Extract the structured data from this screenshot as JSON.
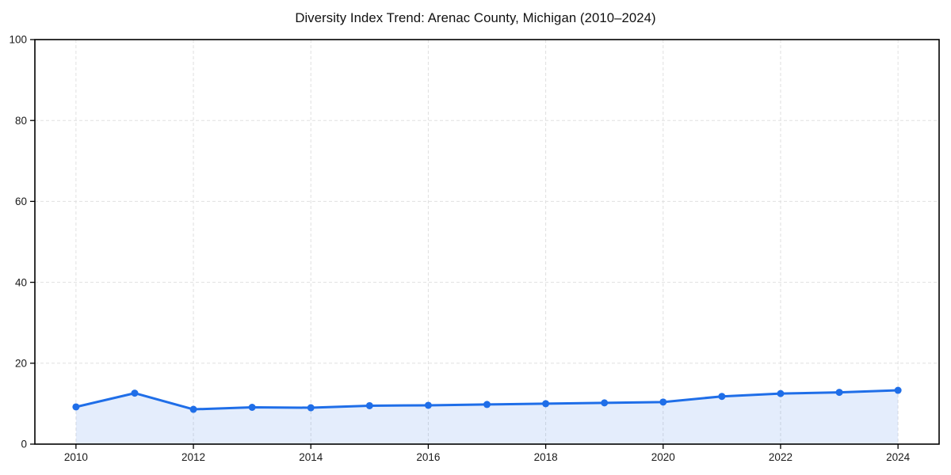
{
  "chart_data": {
    "type": "area",
    "title": "Diversity Index Trend: Arenac County, Michigan (2010–2024)",
    "x": [
      2010,
      2011,
      2012,
      2013,
      2014,
      2015,
      2016,
      2017,
      2018,
      2019,
      2020,
      2021,
      2022,
      2023,
      2024
    ],
    "series": [
      {
        "name": "Diversity Index",
        "values": [
          9.2,
          12.6,
          8.6,
          9.1,
          9.0,
          9.5,
          9.6,
          9.8,
          10.0,
          10.2,
          10.4,
          11.8,
          12.5,
          12.8,
          13.3
        ]
      }
    ],
    "xlabel": "",
    "ylabel": "",
    "xlim": [
      2009.3,
      2024.7
    ],
    "ylim": [
      0,
      100
    ],
    "xticks": [
      2010,
      2012,
      2014,
      2016,
      2018,
      2020,
      2022,
      2024
    ],
    "yticks": [
      0,
      20,
      40,
      60,
      80,
      100
    ],
    "grid": true,
    "grid_style": "dashed",
    "legend_position": "none",
    "marker": "circle",
    "colors": {
      "line": "#1f6ee8",
      "fill": "#1f6ee8",
      "fill_opacity": 0.12,
      "grid": "#e0e0e0",
      "spine": "#000000",
      "tick_text": "#1a1a1a",
      "title_text": "#111111",
      "background": "#ffffff"
    }
  }
}
